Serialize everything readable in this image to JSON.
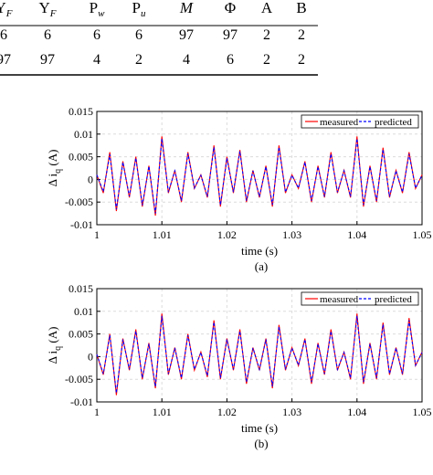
{
  "table": {
    "headers": [
      "Υ_F(partial)",
      "Υ_F",
      "P_w",
      "P_u",
      "M",
      "Φ",
      "A",
      "B"
    ],
    "header_display": [
      {
        "main": "Υ",
        "sub": "F"
      },
      {
        "main": "Υ",
        "sub": "F"
      },
      {
        "main": "P",
        "sub": "w"
      },
      {
        "main": "P",
        "sub": "u"
      },
      {
        "main": "M",
        "sub": ""
      },
      {
        "main": "Φ",
        "sub": ""
      },
      {
        "main": "A",
        "sub": ""
      },
      {
        "main": "B",
        "sub": ""
      }
    ],
    "rows": [
      [
        "6",
        "6",
        "6",
        "6",
        "97",
        "97",
        "2",
        "2"
      ],
      [
        "97",
        "97",
        "4",
        "2",
        "4",
        "6",
        "2",
        "2"
      ]
    ]
  },
  "chart_data": [
    {
      "type": "line",
      "caption": "(a)",
      "xlabel": "time (s)",
      "ylabel": "Δ i_q (A)",
      "ylabel_main": "Δ i",
      "ylabel_sub": "q",
      "ylabel_unit": "(A)",
      "xlim": [
        1.0,
        1.05
      ],
      "ylim": [
        -0.01,
        0.015
      ],
      "xticks": [
        1.0,
        1.01,
        1.02,
        1.03,
        1.04,
        1.05
      ],
      "xtick_labels": [
        "1",
        "1.01",
        "1.02",
        "1.03",
        "1.04",
        "1.05"
      ],
      "yticks": [
        -0.01,
        -0.005,
        0,
        0.005,
        0.01,
        0.015
      ],
      "ytick_labels": [
        "-0.01",
        "-0.005",
        "0",
        "0.005",
        "0.01",
        "0.015"
      ],
      "grid": true,
      "legend_position": "top-right",
      "series": [
        {
          "name": "measured",
          "color": "#ff0000",
          "style": "solid",
          "x": [
            1.0,
            1.001,
            1.002,
            1.003,
            1.004,
            1.005,
            1.006,
            1.007,
            1.008,
            1.009,
            1.01,
            1.011,
            1.012,
            1.013,
            1.014,
            1.015,
            1.016,
            1.017,
            1.018,
            1.019,
            1.02,
            1.021,
            1.022,
            1.023,
            1.024,
            1.025,
            1.026,
            1.027,
            1.028,
            1.029,
            1.03,
            1.031,
            1.032,
            1.033,
            1.034,
            1.035,
            1.036,
            1.037,
            1.038,
            1.039,
            1.04,
            1.041,
            1.042,
            1.043,
            1.044,
            1.045,
            1.046,
            1.047,
            1.048,
            1.049,
            1.05
          ],
          "y": [
            0.001,
            -0.003,
            0.006,
            -0.007,
            0.004,
            -0.004,
            0.005,
            -0.006,
            0.003,
            -0.008,
            0.0095,
            -0.003,
            0.002,
            -0.005,
            0.006,
            -0.002,
            0.001,
            -0.004,
            0.0075,
            -0.006,
            0.005,
            -0.003,
            0.0065,
            -0.005,
            0.002,
            -0.004,
            0.003,
            -0.006,
            0.0075,
            -0.003,
            0.001,
            -0.002,
            0.004,
            -0.005,
            0.003,
            -0.004,
            0.006,
            -0.003,
            0.002,
            -0.004,
            0.0095,
            -0.006,
            0.003,
            -0.005,
            0.007,
            -0.004,
            0.002,
            -0.003,
            0.006,
            -0.002,
            0.001
          ]
        },
        {
          "name": "predicted",
          "color": "#0000ff",
          "style": "dashed",
          "x": [
            1.0,
            1.001,
            1.002,
            1.003,
            1.004,
            1.005,
            1.006,
            1.007,
            1.008,
            1.009,
            1.01,
            1.011,
            1.012,
            1.013,
            1.014,
            1.015,
            1.016,
            1.017,
            1.018,
            1.019,
            1.02,
            1.021,
            1.022,
            1.023,
            1.024,
            1.025,
            1.026,
            1.027,
            1.028,
            1.029,
            1.03,
            1.031,
            1.032,
            1.033,
            1.034,
            1.035,
            1.036,
            1.037,
            1.038,
            1.039,
            1.04,
            1.041,
            1.042,
            1.043,
            1.044,
            1.045,
            1.046,
            1.047,
            1.048,
            1.049,
            1.05
          ],
          "y": [
            0.001,
            -0.0027,
            0.0055,
            -0.0066,
            0.0038,
            -0.0037,
            0.0047,
            -0.0057,
            0.0029,
            -0.0075,
            0.009,
            -0.0028,
            0.0019,
            -0.0047,
            0.0057,
            -0.0019,
            0.0009,
            -0.0038,
            0.0071,
            -0.0056,
            0.0047,
            -0.0028,
            0.0062,
            -0.0047,
            0.0019,
            -0.0038,
            0.0028,
            -0.0056,
            0.0071,
            -0.0028,
            0.0009,
            -0.0019,
            0.0038,
            -0.0047,
            0.0028,
            -0.0038,
            0.0056,
            -0.0028,
            0.0019,
            -0.0038,
            0.009,
            -0.0056,
            0.0028,
            -0.0047,
            0.0066,
            -0.0038,
            0.0019,
            -0.0028,
            0.0056,
            -0.0019,
            0.0009
          ]
        }
      ]
    },
    {
      "type": "line",
      "caption": "(b)",
      "xlabel": "time (s)",
      "ylabel": "Δ i_q (A)",
      "ylabel_main": "Δ i",
      "ylabel_sub": "q",
      "ylabel_unit": "(A)",
      "xlim": [
        1.0,
        1.05
      ],
      "ylim": [
        -0.01,
        0.015
      ],
      "xticks": [
        1.0,
        1.01,
        1.02,
        1.03,
        1.04,
        1.05
      ],
      "xtick_labels": [
        "1",
        "1.01",
        "1.02",
        "1.03",
        "1.04",
        "1.05"
      ],
      "yticks": [
        -0.01,
        -0.005,
        0,
        0.005,
        0.01,
        0.015
      ],
      "ytick_labels": [
        "-0.01",
        "-0.005",
        "0",
        "0.005",
        "0.01",
        "0.015"
      ],
      "grid": true,
      "legend_position": "top-right",
      "series": [
        {
          "name": "measured",
          "color": "#ff0000",
          "style": "solid",
          "x": [
            1.0,
            1.001,
            1.002,
            1.003,
            1.004,
            1.005,
            1.006,
            1.007,
            1.008,
            1.009,
            1.01,
            1.011,
            1.012,
            1.013,
            1.014,
            1.015,
            1.016,
            1.017,
            1.018,
            1.019,
            1.02,
            1.021,
            1.022,
            1.023,
            1.024,
            1.025,
            1.026,
            1.027,
            1.028,
            1.029,
            1.03,
            1.031,
            1.032,
            1.033,
            1.034,
            1.035,
            1.036,
            1.037,
            1.038,
            1.039,
            1.04,
            1.041,
            1.042,
            1.043,
            1.044,
            1.045,
            1.046,
            1.047,
            1.048,
            1.049,
            1.05
          ],
          "y": [
            0.0005,
            -0.004,
            0.005,
            -0.0085,
            0.004,
            -0.003,
            0.006,
            -0.005,
            0.003,
            -0.007,
            0.0095,
            -0.004,
            0.002,
            -0.005,
            0.005,
            -0.003,
            0.001,
            -0.0045,
            0.008,
            -0.005,
            0.004,
            -0.003,
            0.006,
            -0.006,
            0.002,
            -0.003,
            0.004,
            -0.007,
            0.007,
            -0.003,
            0.002,
            -0.002,
            0.004,
            -0.006,
            0.003,
            -0.004,
            0.006,
            -0.003,
            0.001,
            -0.005,
            0.0095,
            -0.006,
            0.003,
            -0.005,
            0.0075,
            -0.004,
            0.002,
            -0.004,
            0.0085,
            -0.002,
            0.001
          ]
        },
        {
          "name": "predicted",
          "color": "#0000ff",
          "style": "dashed",
          "x": [
            1.0,
            1.001,
            1.002,
            1.003,
            1.004,
            1.005,
            1.006,
            1.007,
            1.008,
            1.009,
            1.01,
            1.011,
            1.012,
            1.013,
            1.014,
            1.015,
            1.016,
            1.017,
            1.018,
            1.019,
            1.02,
            1.021,
            1.022,
            1.023,
            1.024,
            1.025,
            1.026,
            1.027,
            1.028,
            1.029,
            1.03,
            1.031,
            1.032,
            1.033,
            1.034,
            1.035,
            1.036,
            1.037,
            1.038,
            1.039,
            1.04,
            1.041,
            1.042,
            1.043,
            1.044,
            1.045,
            1.046,
            1.047,
            1.048,
            1.049,
            1.05
          ],
          "y": [
            0.0005,
            -0.0038,
            0.0047,
            -0.008,
            0.0038,
            -0.0028,
            0.0056,
            -0.0047,
            0.0028,
            -0.0066,
            0.009,
            -0.0038,
            0.0019,
            -0.0047,
            0.0047,
            -0.0028,
            0.0009,
            -0.0042,
            0.0076,
            -0.0047,
            0.0038,
            -0.0028,
            0.0056,
            -0.0056,
            0.0019,
            -0.0028,
            0.0038,
            -0.0066,
            0.0066,
            -0.0028,
            0.0019,
            -0.0019,
            0.0038,
            -0.0056,
            0.0028,
            -0.0038,
            0.0056,
            -0.0028,
            0.0009,
            -0.0047,
            0.009,
            -0.0056,
            0.0028,
            -0.0047,
            0.0071,
            -0.0038,
            0.0019,
            -0.0038,
            0.008,
            -0.0019,
            0.0009
          ]
        }
      ]
    }
  ]
}
